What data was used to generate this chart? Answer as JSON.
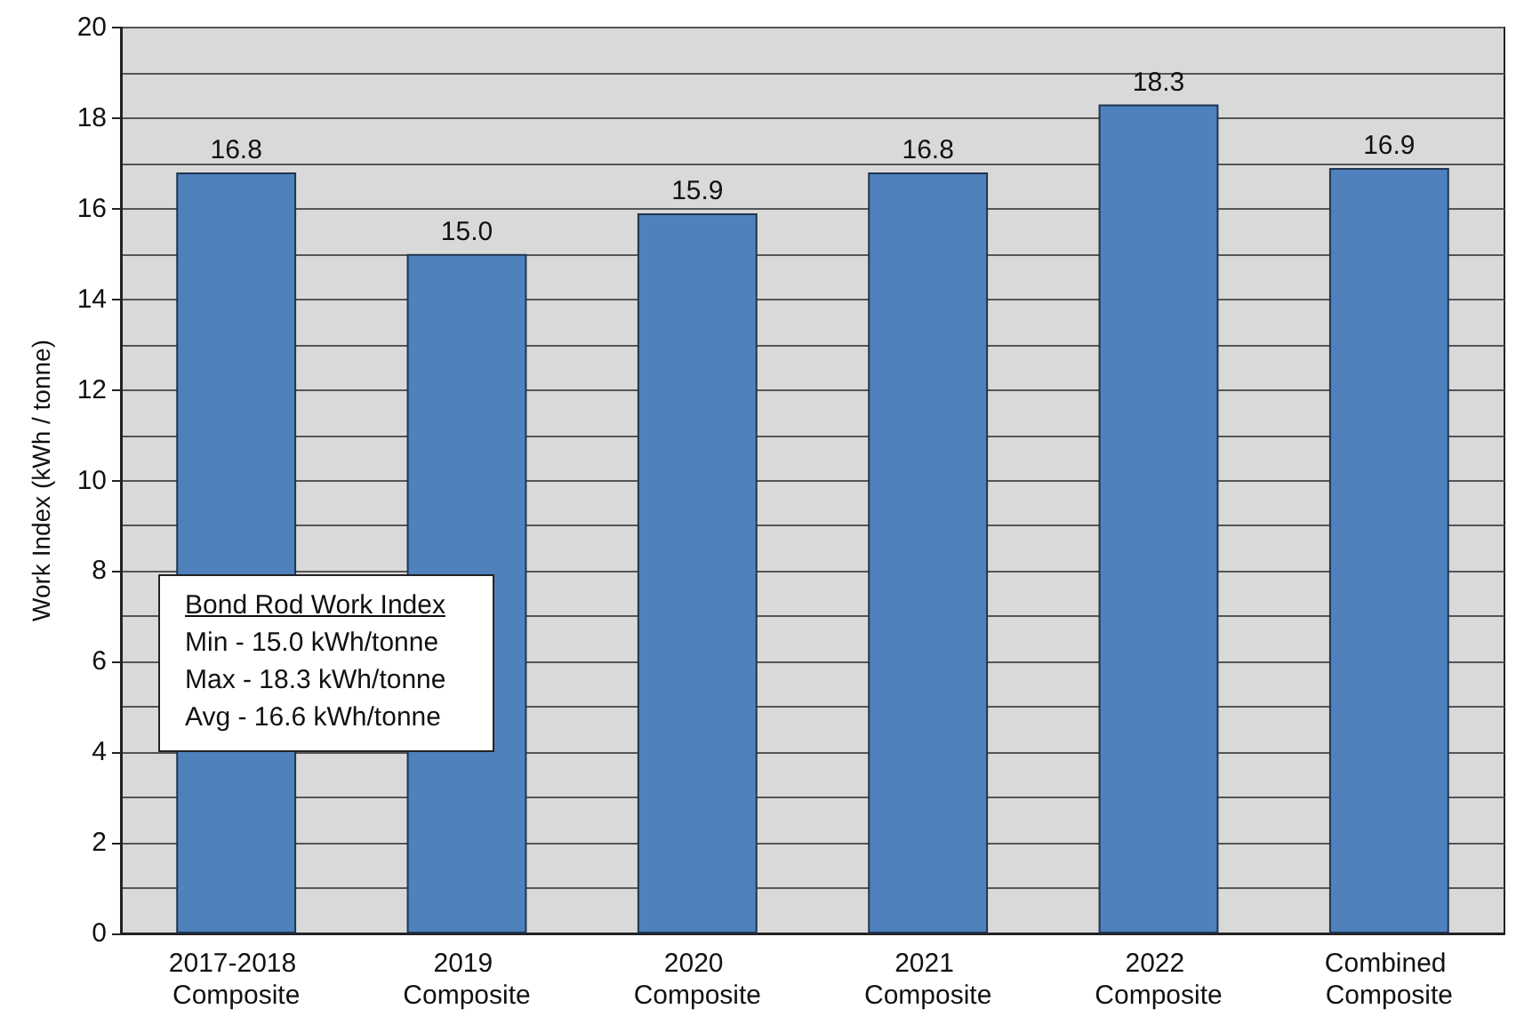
{
  "chart_data": {
    "type": "bar",
    "ylabel": "Work Index (kWh / tonne)",
    "categories": [
      "2017-2018 Composite",
      "2019 Composite",
      "2020 Composite",
      "2021 Composite",
      "2022 Composite",
      "Combined Composite"
    ],
    "values": [
      16.8,
      15.0,
      15.9,
      16.8,
      18.3,
      16.9
    ],
    "value_labels": [
      "16.8",
      "15.0",
      "15.9",
      "16.8",
      "18.3",
      "16.9"
    ],
    "color": "#4f81bd",
    "ylim": [
      0,
      20
    ],
    "yticks": [
      0,
      2,
      4,
      6,
      8,
      10,
      12,
      14,
      16,
      18,
      20
    ],
    "grid": "y",
    "annotations": [
      "Bond Rod Work Index",
      "Min - 15.0 kWh/tonne",
      "Max - 18.3 kWh/tonne",
      "Avg - 16.6 kWh/tonne"
    ]
  }
}
